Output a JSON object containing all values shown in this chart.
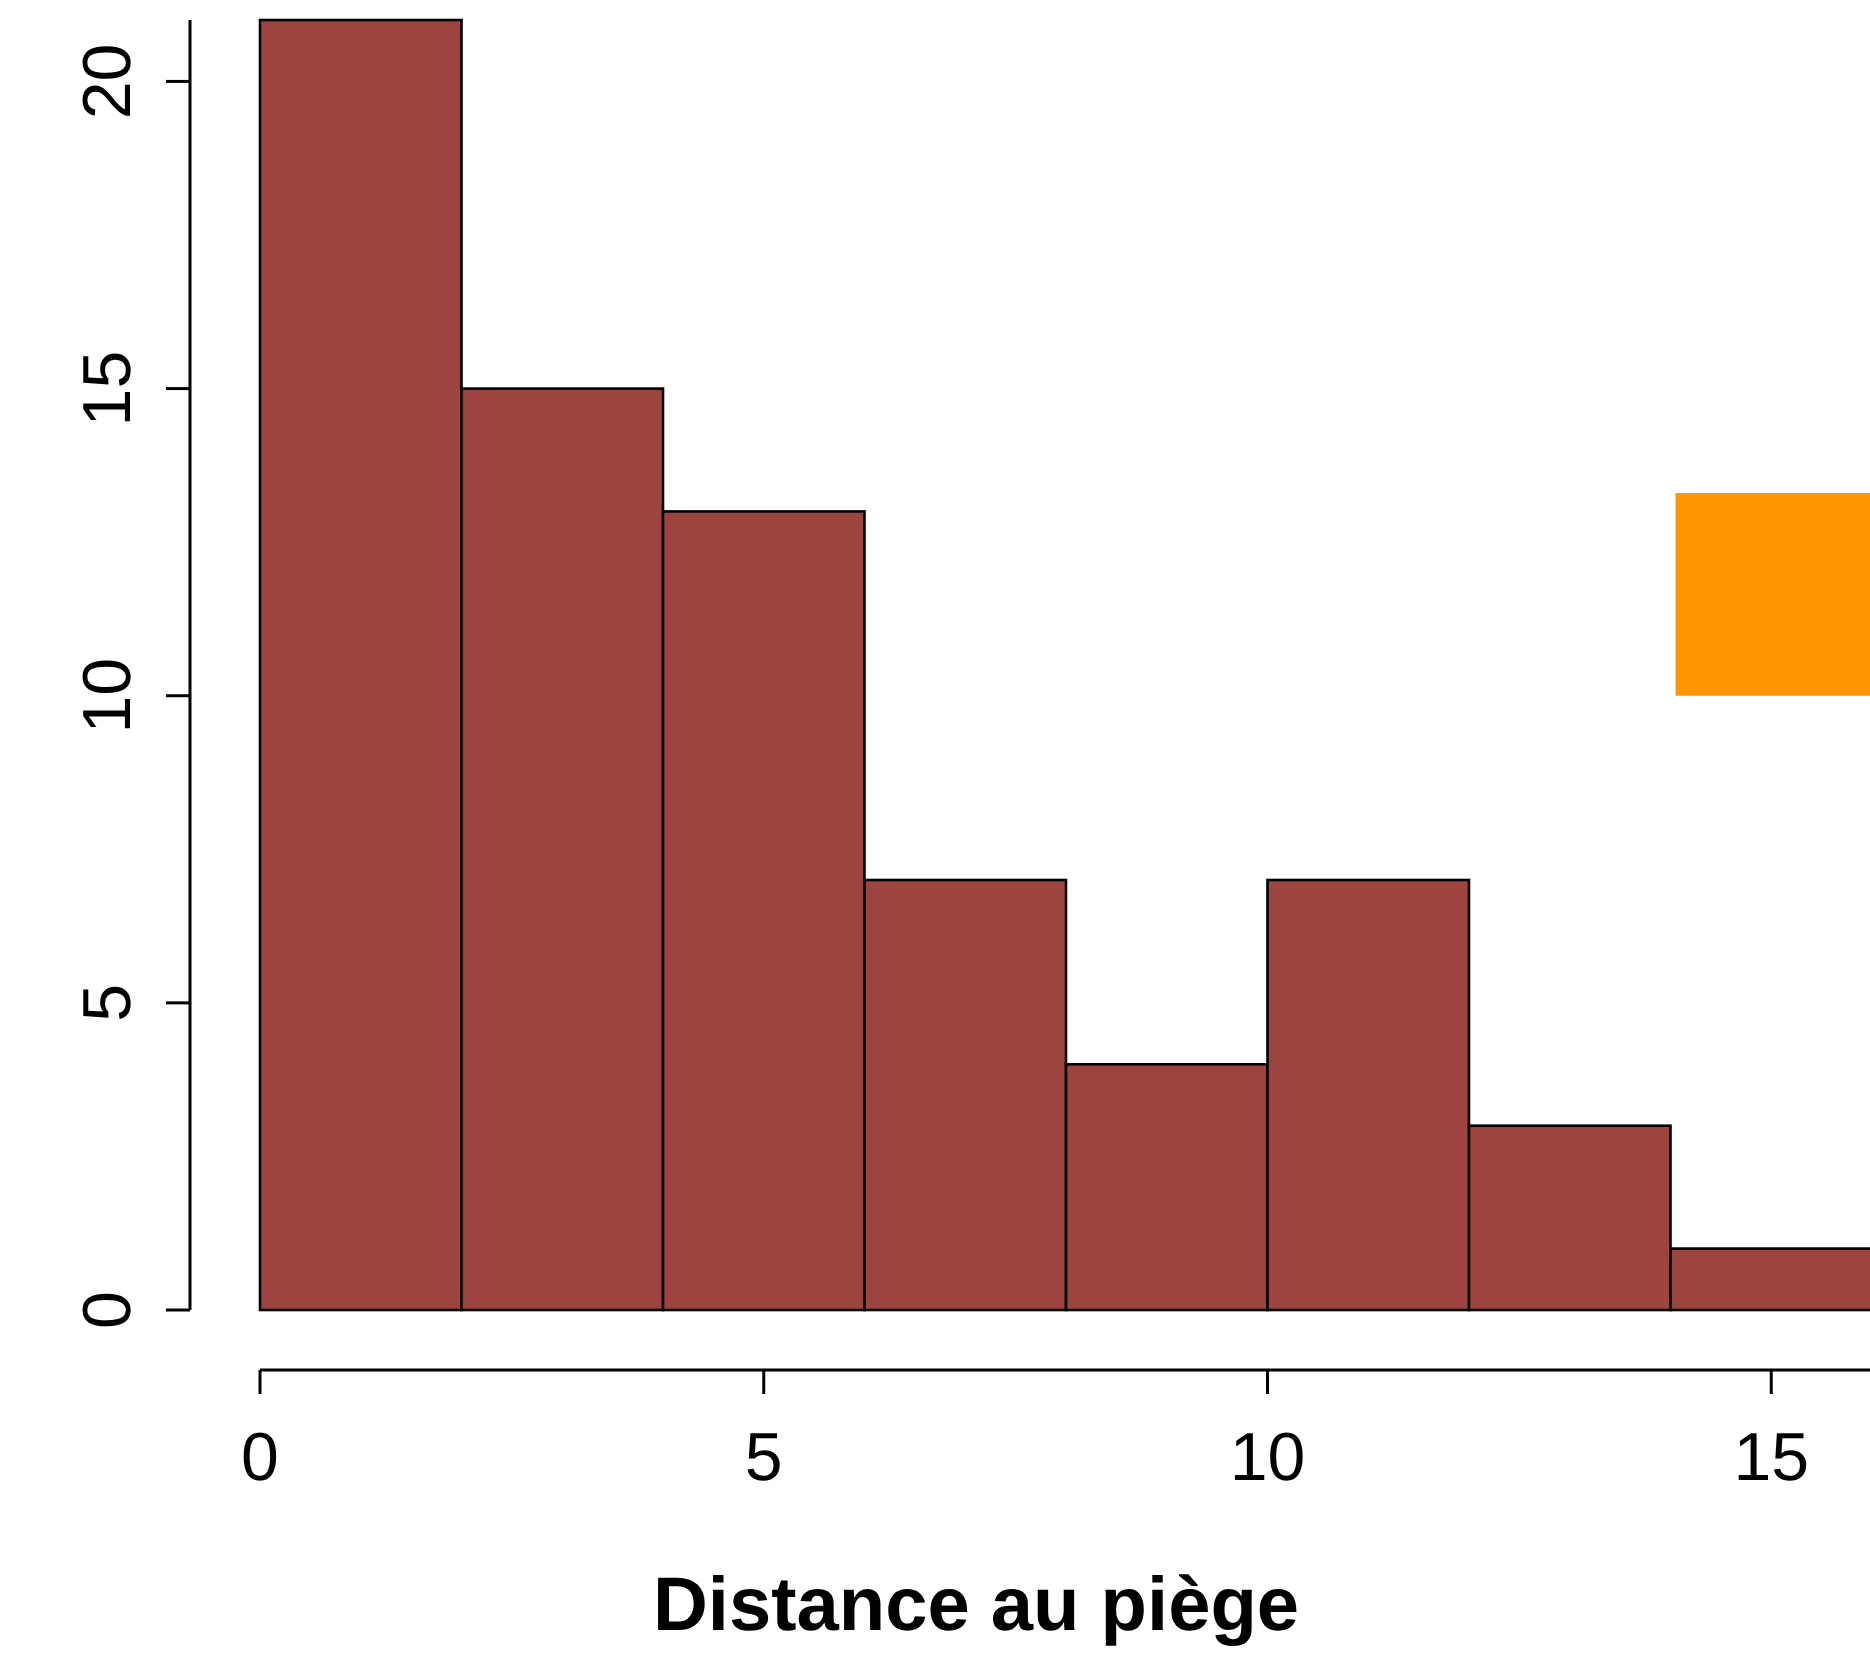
{
  "chart_data": {
    "type": "histogram",
    "xlabel": "Distance au piège",
    "bins": [
      0,
      2,
      4,
      6,
      8,
      10,
      12,
      14,
      16
    ],
    "values": [
      21,
      15,
      13,
      7,
      4,
      7,
      3,
      1
    ],
    "color": "#9e4440",
    "xlim": [
      0,
      16
    ],
    "xticks": [
      0,
      5,
      10,
      15
    ],
    "ylim": [
      0,
      21
    ],
    "yticks": [
      0,
      5,
      10,
      15,
      20
    ],
    "grid": false
  }
}
